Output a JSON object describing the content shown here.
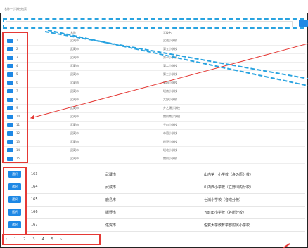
{
  "page": {
    "title": "名称一小学校検索"
  },
  "search": {
    "placeholder": ""
  },
  "table": {
    "headers": [
      "名称",
      "学校名"
    ],
    "rows": [
      {
        "no": "1",
        "city": "武蔵市",
        "school": "武蔵小学校"
      },
      {
        "no": "2",
        "city": "武蔵市",
        "school": "第五小学校"
      },
      {
        "no": "3",
        "city": "武蔵市",
        "school": "第一小学校"
      },
      {
        "no": "4",
        "city": "武蔵市",
        "school": "第二小学校"
      },
      {
        "no": "5",
        "city": "武蔵市",
        "school": "第三小学校"
      },
      {
        "no": "6",
        "city": "武蔵市",
        "school": "第四小学校"
      },
      {
        "no": "7",
        "city": "武蔵市",
        "school": "境南小学校"
      },
      {
        "no": "8",
        "city": "武蔵市",
        "school": "大野小学校"
      },
      {
        "no": "9",
        "city": "武蔵市",
        "school": "井之頭小学校"
      },
      {
        "no": "10",
        "city": "武蔵市",
        "school": "関前南小学校"
      },
      {
        "no": "11",
        "city": "武蔵市",
        "school": "千川小学校"
      },
      {
        "no": "12",
        "city": "武蔵市",
        "school": "本宿小学校"
      },
      {
        "no": "13",
        "city": "武蔵市",
        "school": "桜野小学校"
      },
      {
        "no": "14",
        "city": "武蔵市",
        "school": "境北小学校"
      },
      {
        "no": "15",
        "city": "武蔵市",
        "school": "関前小学校"
      }
    ],
    "zoom_rows": [
      {
        "btn": "選択",
        "no": "163",
        "city": "武蔵市",
        "school": "山内第一小学校（舟の原分校）"
      },
      {
        "btn": "選択",
        "no": "164",
        "city": "武蔵市",
        "school": "山内西小学校（立野川内分校）"
      },
      {
        "btn": "選択",
        "no": "165",
        "city": "鹿島市",
        "school": "七浦小学校（音成分校）"
      },
      {
        "btn": "選択",
        "no": "166",
        "city": "嬉野市",
        "school": "五町田小学校（谷所分校）"
      },
      {
        "btn": "選択",
        "no": "167",
        "city": "佐賀市",
        "school": "佐賀大学教育学部附属小学校"
      }
    ]
  },
  "pagination": {
    "pages": [
      "‹",
      "1",
      "2",
      "3",
      "4",
      "5",
      "›"
    ]
  },
  "colors": {
    "primary": "#1e88e5",
    "highlight": "#e53935",
    "dash": "#29a3e0"
  }
}
